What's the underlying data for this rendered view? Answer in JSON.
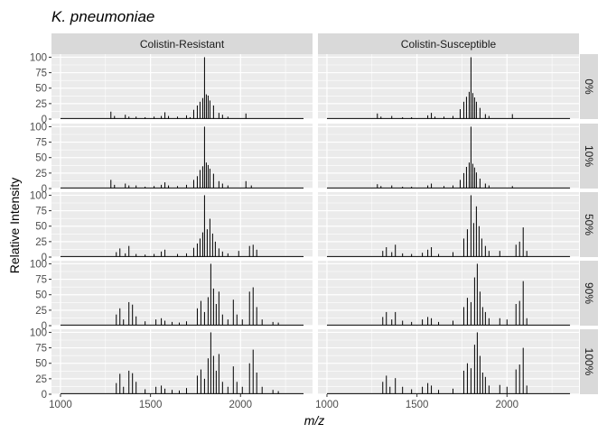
{
  "chart_data": {
    "type": "line",
    "title": "K. pneumoniae",
    "xlabel": "m/z",
    "ylabel": "Relative Intensity",
    "xlim": [
      950,
      2400
    ],
    "ylim": [
      0,
      105
    ],
    "x_ticks": [
      1000,
      1500,
      2000
    ],
    "x_tick_labels": [
      "1000",
      "1500",
      "2000"
    ],
    "y_ticks": [
      0,
      25,
      50,
      75,
      100
    ],
    "y_tick_labels": [
      "0",
      "25",
      "50",
      "75",
      "100"
    ],
    "columns": [
      "Colistin-Resistant",
      "Colistin-Susceptible"
    ],
    "rows": [
      "0%",
      "10%",
      "50%",
      "90%",
      "100%"
    ],
    "grid": true,
    "panel_background": "#ebebeb",
    "strip_background": "#d9d9d9",
    "line_color": "#000000",
    "panels": [
      {
        "column": "Colistin-Resistant",
        "row": "0%",
        "peaks": [
          [
            1280,
            12
          ],
          [
            1300,
            5
          ],
          [
            1360,
            7
          ],
          [
            1380,
            4
          ],
          [
            1420,
            4
          ],
          [
            1470,
            3
          ],
          [
            1520,
            4
          ],
          [
            1560,
            5
          ],
          [
            1580,
            11
          ],
          [
            1600,
            5
          ],
          [
            1650,
            4
          ],
          [
            1700,
            6
          ],
          [
            1720,
            3
          ],
          [
            1740,
            15
          ],
          [
            1760,
            22
          ],
          [
            1775,
            28
          ],
          [
            1790,
            34
          ],
          [
            1800,
            100
          ],
          [
            1810,
            40
          ],
          [
            1820,
            38
          ],
          [
            1830,
            30
          ],
          [
            1850,
            22
          ],
          [
            1880,
            10
          ],
          [
            1900,
            7
          ],
          [
            1930,
            4
          ],
          [
            2030,
            9
          ]
        ]
      },
      {
        "column": "Colistin-Resistant",
        "row": "10%",
        "peaks": [
          [
            1280,
            14
          ],
          [
            1300,
            6
          ],
          [
            1360,
            8
          ],
          [
            1380,
            5
          ],
          [
            1420,
            5
          ],
          [
            1470,
            3
          ],
          [
            1520,
            4
          ],
          [
            1560,
            6
          ],
          [
            1580,
            10
          ],
          [
            1600,
            5
          ],
          [
            1650,
            4
          ],
          [
            1700,
            6
          ],
          [
            1740,
            14
          ],
          [
            1760,
            20
          ],
          [
            1775,
            30
          ],
          [
            1790,
            36
          ],
          [
            1800,
            100
          ],
          [
            1810,
            42
          ],
          [
            1820,
            38
          ],
          [
            1830,
            32
          ],
          [
            1850,
            24
          ],
          [
            1880,
            12
          ],
          [
            1900,
            8
          ],
          [
            1930,
            5
          ],
          [
            2030,
            12
          ],
          [
            2060,
            5
          ]
        ]
      },
      {
        "column": "Colistin-Resistant",
        "row": "50%",
        "peaks": [
          [
            1310,
            8
          ],
          [
            1330,
            14
          ],
          [
            1360,
            6
          ],
          [
            1380,
            18
          ],
          [
            1420,
            5
          ],
          [
            1470,
            4
          ],
          [
            1520,
            5
          ],
          [
            1560,
            9
          ],
          [
            1580,
            12
          ],
          [
            1650,
            5
          ],
          [
            1700,
            6
          ],
          [
            1740,
            15
          ],
          [
            1760,
            22
          ],
          [
            1775,
            30
          ],
          [
            1790,
            40
          ],
          [
            1800,
            100
          ],
          [
            1815,
            45
          ],
          [
            1830,
            62
          ],
          [
            1845,
            38
          ],
          [
            1860,
            25
          ],
          [
            1880,
            14
          ],
          [
            1900,
            9
          ],
          [
            1930,
            6
          ],
          [
            1990,
            10
          ],
          [
            2050,
            18
          ],
          [
            2070,
            20
          ],
          [
            2090,
            12
          ]
        ]
      },
      {
        "column": "Colistin-Resistant",
        "row": "90%",
        "peaks": [
          [
            1310,
            18
          ],
          [
            1330,
            28
          ],
          [
            1350,
            10
          ],
          [
            1380,
            38
          ],
          [
            1400,
            34
          ],
          [
            1420,
            15
          ],
          [
            1470,
            7
          ],
          [
            1530,
            10
          ],
          [
            1560,
            12
          ],
          [
            1580,
            8
          ],
          [
            1620,
            6
          ],
          [
            1660,
            5
          ],
          [
            1700,
            7
          ],
          [
            1760,
            28
          ],
          [
            1780,
            40
          ],
          [
            1800,
            22
          ],
          [
            1820,
            46
          ],
          [
            1835,
            100
          ],
          [
            1850,
            60
          ],
          [
            1865,
            35
          ],
          [
            1880,
            55
          ],
          [
            1900,
            18
          ],
          [
            1930,
            10
          ],
          [
            1960,
            42
          ],
          [
            1980,
            18
          ],
          [
            2010,
            10
          ],
          [
            2050,
            55
          ],
          [
            2070,
            62
          ],
          [
            2090,
            30
          ],
          [
            2120,
            10
          ],
          [
            2180,
            6
          ],
          [
            2210,
            5
          ]
        ]
      },
      {
        "column": "Colistin-Resistant",
        "row": "100%",
        "peaks": [
          [
            1310,
            18
          ],
          [
            1330,
            33
          ],
          [
            1350,
            12
          ],
          [
            1380,
            38
          ],
          [
            1400,
            34
          ],
          [
            1420,
            20
          ],
          [
            1470,
            8
          ],
          [
            1530,
            12
          ],
          [
            1560,
            14
          ],
          [
            1580,
            9
          ],
          [
            1620,
            7
          ],
          [
            1660,
            6
          ],
          [
            1700,
            10
          ],
          [
            1760,
            30
          ],
          [
            1780,
            40
          ],
          [
            1800,
            25
          ],
          [
            1820,
            58
          ],
          [
            1835,
            100
          ],
          [
            1850,
            62
          ],
          [
            1865,
            38
          ],
          [
            1880,
            65
          ],
          [
            1900,
            20
          ],
          [
            1930,
            12
          ],
          [
            1960,
            45
          ],
          [
            1980,
            20
          ],
          [
            2010,
            12
          ],
          [
            2050,
            50
          ],
          [
            2070,
            72
          ],
          [
            2090,
            35
          ],
          [
            2120,
            12
          ],
          [
            2180,
            7
          ],
          [
            2210,
            5
          ]
        ]
      },
      {
        "column": "Colistin-Susceptible",
        "row": "0%",
        "peaks": [
          [
            1280,
            9
          ],
          [
            1300,
            4
          ],
          [
            1360,
            5
          ],
          [
            1420,
            3
          ],
          [
            1470,
            3
          ],
          [
            1560,
            6
          ],
          [
            1580,
            10
          ],
          [
            1600,
            4
          ],
          [
            1650,
            4
          ],
          [
            1700,
            5
          ],
          [
            1740,
            16
          ],
          [
            1760,
            28
          ],
          [
            1775,
            36
          ],
          [
            1790,
            44
          ],
          [
            1800,
            100
          ],
          [
            1810,
            42
          ],
          [
            1820,
            35
          ],
          [
            1830,
            28
          ],
          [
            1850,
            18
          ],
          [
            1880,
            8
          ],
          [
            1900,
            5
          ],
          [
            2030,
            8
          ]
        ]
      },
      {
        "column": "Colistin-Susceptible",
        "row": "10%",
        "peaks": [
          [
            1280,
            7
          ],
          [
            1300,
            4
          ],
          [
            1360,
            5
          ],
          [
            1420,
            3
          ],
          [
            1470,
            3
          ],
          [
            1560,
            5
          ],
          [
            1580,
            8
          ],
          [
            1650,
            4
          ],
          [
            1700,
            5
          ],
          [
            1740,
            14
          ],
          [
            1760,
            25
          ],
          [
            1775,
            35
          ],
          [
            1790,
            42
          ],
          [
            1800,
            100
          ],
          [
            1810,
            40
          ],
          [
            1820,
            34
          ],
          [
            1830,
            26
          ],
          [
            1850,
            16
          ],
          [
            1880,
            8
          ],
          [
            1900,
            5
          ],
          [
            2030,
            4
          ]
        ]
      },
      {
        "column": "Colistin-Susceptible",
        "row": "50%",
        "peaks": [
          [
            1310,
            10
          ],
          [
            1330,
            16
          ],
          [
            1360,
            8
          ],
          [
            1380,
            20
          ],
          [
            1420,
            6
          ],
          [
            1470,
            5
          ],
          [
            1530,
            7
          ],
          [
            1560,
            12
          ],
          [
            1580,
            16
          ],
          [
            1620,
            5
          ],
          [
            1700,
            8
          ],
          [
            1760,
            30
          ],
          [
            1780,
            45
          ],
          [
            1800,
            100
          ],
          [
            1815,
            55
          ],
          [
            1830,
            82
          ],
          [
            1845,
            50
          ],
          [
            1860,
            30
          ],
          [
            1880,
            18
          ],
          [
            1900,
            10
          ],
          [
            1960,
            10
          ],
          [
            2050,
            20
          ],
          [
            2070,
            25
          ],
          [
            2090,
            48
          ],
          [
            2110,
            10
          ]
        ]
      },
      {
        "column": "Colistin-Susceptible",
        "row": "90%",
        "peaks": [
          [
            1310,
            14
          ],
          [
            1330,
            22
          ],
          [
            1360,
            10
          ],
          [
            1380,
            22
          ],
          [
            1420,
            8
          ],
          [
            1470,
            6
          ],
          [
            1530,
            10
          ],
          [
            1560,
            14
          ],
          [
            1580,
            12
          ],
          [
            1620,
            6
          ],
          [
            1700,
            8
          ],
          [
            1760,
            30
          ],
          [
            1780,
            45
          ],
          [
            1800,
            38
          ],
          [
            1820,
            78
          ],
          [
            1835,
            100
          ],
          [
            1850,
            55
          ],
          [
            1865,
            30
          ],
          [
            1880,
            22
          ],
          [
            1900,
            12
          ],
          [
            1960,
            12
          ],
          [
            2000,
            10
          ],
          [
            2050,
            35
          ],
          [
            2070,
            40
          ],
          [
            2090,
            72
          ],
          [
            2110,
            12
          ]
        ]
      },
      {
        "column": "Colistin-Susceptible",
        "row": "100%",
        "peaks": [
          [
            1310,
            20
          ],
          [
            1330,
            30
          ],
          [
            1350,
            12
          ],
          [
            1380,
            26
          ],
          [
            1420,
            12
          ],
          [
            1470,
            8
          ],
          [
            1530,
            12
          ],
          [
            1560,
            18
          ],
          [
            1580,
            14
          ],
          [
            1620,
            7
          ],
          [
            1700,
            9
          ],
          [
            1760,
            38
          ],
          [
            1780,
            50
          ],
          [
            1800,
            42
          ],
          [
            1820,
            80
          ],
          [
            1835,
            100
          ],
          [
            1850,
            62
          ],
          [
            1865,
            35
          ],
          [
            1880,
            28
          ],
          [
            1900,
            14
          ],
          [
            1960,
            15
          ],
          [
            2000,
            12
          ],
          [
            2050,
            40
          ],
          [
            2070,
            48
          ],
          [
            2090,
            75
          ],
          [
            2110,
            14
          ]
        ]
      }
    ]
  }
}
